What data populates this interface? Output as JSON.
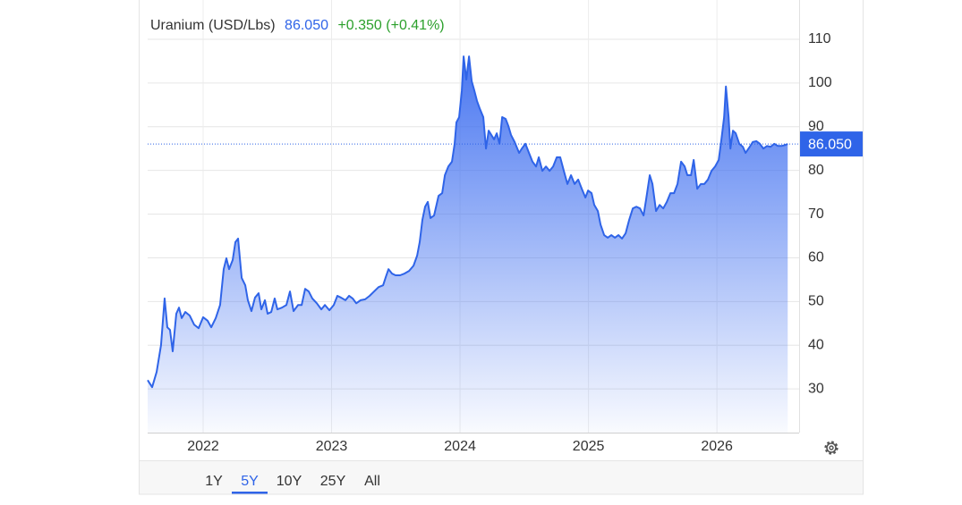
{
  "chart_data": {
    "type": "area",
    "title": "Uranium (USD/Lbs)",
    "price": {
      "value": 86.05,
      "label": "86.050"
    },
    "change": "+0.350 (+0.41%)",
    "color": "#2f64e8",
    "change_color": "#2ca02c",
    "grid": true,
    "ylim": [
      20,
      119
    ],
    "yticks": [
      30,
      40,
      50,
      60,
      70,
      80,
      90,
      100,
      110
    ],
    "xlim": [
      2021.568,
      2026.64
    ],
    "xticks": [
      2022,
      2023,
      2024,
      2025,
      2026
    ],
    "x": [
      2021.568,
      2021.603,
      2021.638,
      2021.672,
      2021.7,
      2021.721,
      2021.742,
      2021.763,
      2021.791,
      2021.812,
      2021.833,
      2021.861,
      2021.895,
      2021.93,
      2021.965,
      2022.0,
      2022.035,
      2022.063,
      2022.098,
      2022.132,
      2022.16,
      2022.181,
      2022.202,
      2022.23,
      2022.251,
      2022.272,
      2022.3,
      2022.328,
      2022.348,
      2022.376,
      2022.404,
      2022.432,
      2022.453,
      2022.481,
      2022.502,
      2022.53,
      2022.557,
      2022.578,
      2022.613,
      2022.648,
      2022.676,
      2022.704,
      2022.739,
      2022.767,
      2022.794,
      2022.822,
      2022.85,
      2022.885,
      2022.92,
      2022.948,
      2022.983,
      2023.017,
      2023.045,
      2023.073,
      2023.108,
      2023.136,
      2023.164,
      2023.192,
      2023.226,
      2023.261,
      2023.296,
      2023.331,
      2023.366,
      2023.401,
      2023.422,
      2023.443,
      2023.47,
      2023.498,
      2023.533,
      2023.568,
      2023.603,
      2023.638,
      2023.666,
      2023.686,
      2023.707,
      2023.728,
      2023.749,
      2023.77,
      2023.798,
      2023.833,
      2023.861,
      2023.882,
      2023.909,
      2023.937,
      2023.958,
      2023.972,
      2023.993,
      2024.014,
      2024.028,
      2024.049,
      2024.07,
      2024.091,
      2024.111,
      2024.132,
      2024.153,
      2024.181,
      2024.202,
      2024.223,
      2024.244,
      2024.265,
      2024.286,
      2024.307,
      2024.328,
      2024.355,
      2024.376,
      2024.397,
      2024.425,
      2024.46,
      2024.481,
      2024.509,
      2024.537,
      2024.564,
      2024.592,
      2024.613,
      2024.641,
      2024.669,
      2024.697,
      2024.725,
      2024.753,
      2024.78,
      2024.808,
      2024.836,
      2024.864,
      2024.892,
      2024.92,
      2024.948,
      2024.976,
      2024.997,
      2025.024,
      2025.045,
      2025.073,
      2025.094,
      2025.122,
      2025.15,
      2025.178,
      2025.206,
      2025.233,
      2025.261,
      2025.289,
      2025.317,
      2025.345,
      2025.373,
      2025.401,
      2025.429,
      2025.449,
      2025.477,
      2025.498,
      2025.526,
      2025.554,
      2025.582,
      2025.61,
      2025.638,
      2025.666,
      2025.693,
      2025.721,
      2025.749,
      2025.77,
      2025.798,
      2025.819,
      2025.847,
      2025.875,
      2025.902,
      2025.93,
      2025.958,
      2025.986,
      2026.014,
      2026.035,
      2026.056,
      2026.07,
      2026.091,
      2026.105,
      2026.125,
      2026.146,
      2026.174,
      2026.202,
      2026.223,
      2026.251,
      2026.279,
      2026.307,
      2026.334,
      2026.362,
      2026.39,
      2026.418,
      2026.446,
      2026.474,
      2026.502,
      2026.53,
      2026.551
    ],
    "values": [
      32.0,
      30.4,
      33.9,
      40.0,
      50.7,
      44.1,
      43.5,
      38.6,
      47.2,
      48.6,
      46.2,
      47.6,
      46.8,
      44.7,
      43.9,
      46.4,
      45.6,
      44.1,
      46.2,
      49.2,
      57.4,
      59.9,
      57.4,
      59.5,
      63.6,
      64.4,
      55.4,
      53.7,
      50.3,
      47.8,
      50.9,
      51.9,
      48.2,
      50.3,
      47.2,
      47.6,
      50.7,
      48.2,
      48.6,
      49.2,
      52.3,
      47.8,
      49.2,
      49.2,
      52.9,
      52.3,
      50.7,
      49.6,
      48.2,
      49.2,
      48.0,
      49.2,
      51.3,
      50.9,
      50.3,
      51.3,
      50.7,
      49.6,
      50.3,
      50.5,
      51.3,
      52.3,
      53.3,
      53.7,
      55.6,
      57.4,
      56.4,
      56.0,
      56.0,
      56.4,
      57.0,
      58.2,
      60.5,
      63.6,
      68.7,
      71.7,
      72.8,
      69.1,
      69.7,
      74.2,
      74.8,
      78.9,
      80.9,
      82.0,
      86.1,
      91.0,
      92.2,
      98.3,
      106.1,
      100.8,
      106.1,
      100.4,
      98.3,
      95.9,
      94.2,
      92.2,
      85.0,
      89.1,
      88.1,
      87.1,
      88.5,
      86.1,
      92.2,
      91.8,
      90.2,
      88.1,
      86.5,
      84.0,
      85.0,
      86.1,
      84.0,
      82.0,
      80.9,
      83.0,
      79.9,
      80.9,
      79.9,
      80.9,
      83.0,
      83.0,
      79.9,
      76.9,
      78.9,
      76.9,
      77.9,
      75.8,
      73.8,
      75.4,
      74.8,
      72.1,
      70.7,
      67.6,
      65.2,
      64.6,
      65.2,
      64.6,
      65.2,
      64.4,
      65.6,
      68.7,
      71.3,
      71.7,
      71.3,
      69.7,
      73.4,
      78.9,
      76.9,
      70.7,
      72.1,
      71.3,
      72.8,
      74.8,
      74.8,
      76.9,
      82.0,
      80.9,
      78.9,
      78.9,
      82.4,
      75.8,
      76.9,
      76.9,
      77.9,
      79.9,
      80.9,
      82.4,
      87.1,
      92.2,
      99.2,
      92.2,
      85.0,
      89.1,
      88.5,
      86.1,
      85.4,
      84.0,
      85.2,
      86.5,
      86.7,
      86.1,
      85.0,
      85.6,
      85.4,
      86.1,
      85.6,
      85.6,
      85.8,
      86.05
    ],
    "ranges": [
      "1Y",
      "5Y",
      "10Y",
      "25Y",
      "All"
    ],
    "active_range": 1
  }
}
